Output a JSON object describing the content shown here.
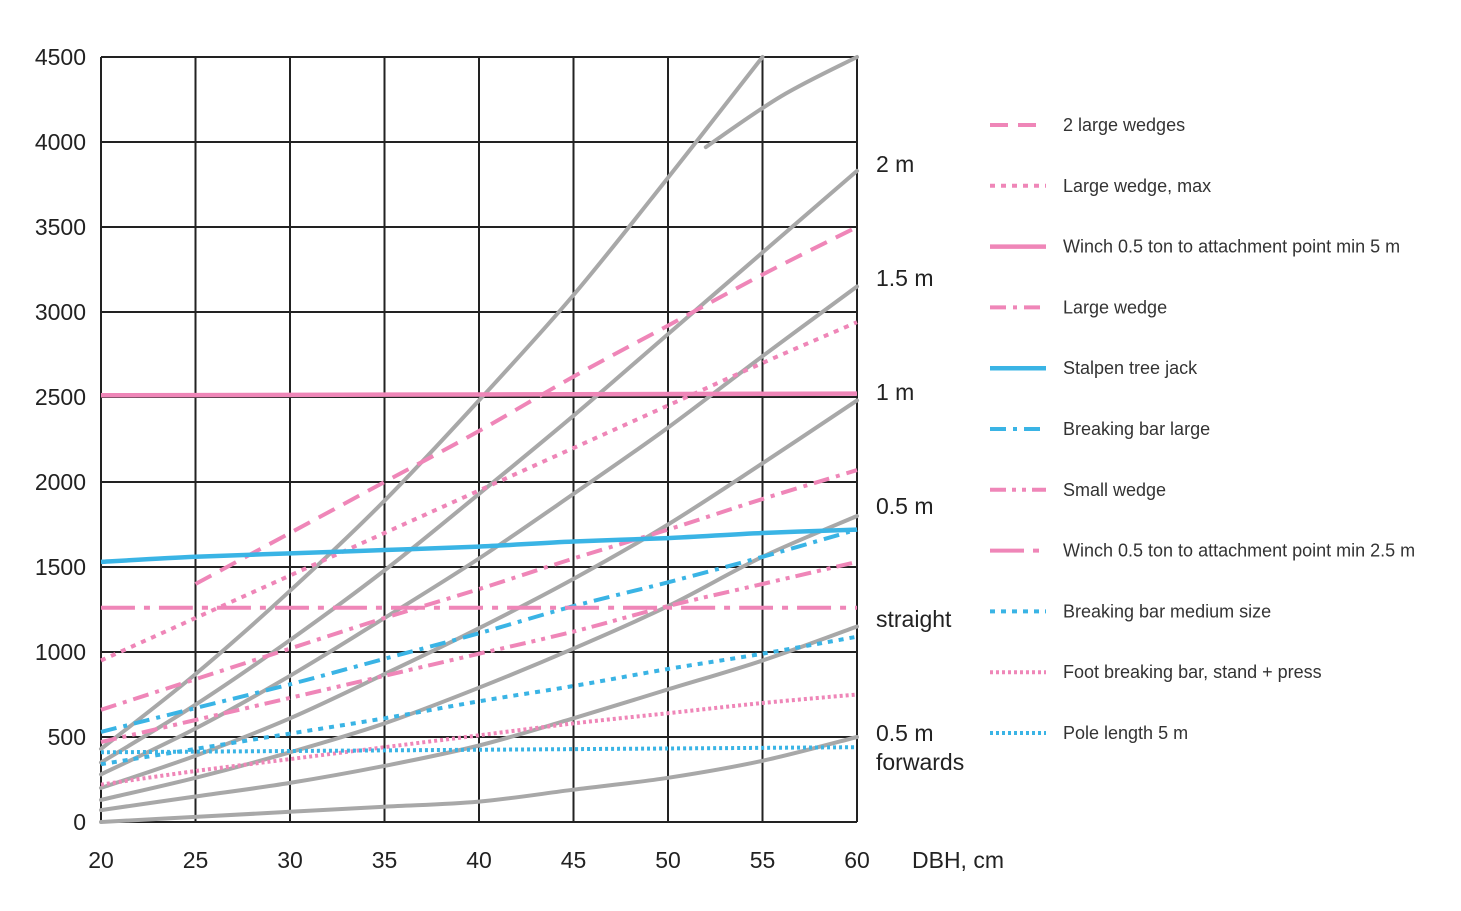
{
  "chart_data": {
    "type": "line",
    "xlabel": "DBH, cm",
    "ylabel": "",
    "xlim": [
      20,
      60
    ],
    "ylim": [
      0,
      4500
    ],
    "x_ticks": [
      20,
      25,
      30,
      35,
      40,
      45,
      50,
      55,
      60
    ],
    "y_ticks": [
      0,
      500,
      1000,
      1500,
      2000,
      2500,
      3000,
      3500,
      4000,
      4500
    ],
    "grid": true,
    "legend_position": "right",
    "colors": {
      "pink": "#ef86b8",
      "blue": "#3ab4e5",
      "gray": "#a8a8a8",
      "grid": "#222222"
    },
    "curve_labels": [
      "2 m",
      "1.5 m",
      "1 m",
      "0.5 m",
      "straight",
      "0.5 m forwards"
    ],
    "reference_curves": [
      {
        "x": [
          20,
          25,
          30,
          35,
          40,
          45,
          50,
          55,
          60
        ],
        "values": [
          0,
          30,
          60,
          90,
          120,
          190,
          260,
          360,
          500
        ]
      },
      {
        "x": [
          20,
          25,
          30,
          35,
          40,
          45,
          50,
          55,
          60
        ],
        "values": [
          70,
          150,
          230,
          330,
          450,
          610,
          780,
          950,
          1150
        ]
      },
      {
        "x": [
          20,
          25,
          30,
          35,
          40,
          45,
          50,
          55,
          60
        ],
        "values": [
          130,
          260,
          410,
          580,
          790,
          1020,
          1270,
          1560,
          1800
        ]
      },
      {
        "x": [
          20,
          25,
          30,
          35,
          40,
          45,
          50,
          55,
          60
        ],
        "values": [
          200,
          390,
          610,
          870,
          1140,
          1430,
          1750,
          2110,
          2480
        ]
      },
      {
        "x": [
          20,
          25,
          30,
          35,
          40,
          45,
          50,
          55,
          60
        ],
        "values": [
          280,
          550,
          860,
          1200,
          1550,
          1930,
          2320,
          2740,
          3150
        ]
      },
      {
        "x": [
          20,
          25,
          30,
          35,
          40,
          45,
          50,
          55,
          60
        ],
        "values": [
          350,
          690,
          1070,
          1480,
          1930,
          2390,
          2870,
          3350,
          3830
        ]
      },
      {
        "x": [
          20,
          25,
          30,
          35,
          40,
          45,
          50,
          55,
          60
        ],
        "values": [
          430,
          870,
          1360,
          1890,
          2480,
          3100,
          3790,
          4500,
          null
        ]
      },
      {
        "x": [
          20,
          25,
          30,
          35,
          40,
          45,
          50,
          55,
          60
        ],
        "values": [
          null,
          null,
          null,
          null,
          null,
          null,
          null,
          null,
          4500
        ],
        "extend_from": [
          [
            52,
            3970
          ],
          [
            56,
            4270
          ],
          [
            60,
            4500
          ]
        ]
      }
    ],
    "series": [
      {
        "name": "2 large wedges",
        "color": "#ef86b8",
        "style": "dashed",
        "x": [
          25,
          30,
          35,
          40,
          45,
          50,
          55,
          60
        ],
        "values": [
          1400,
          1700,
          2000,
          2300,
          2620,
          2920,
          3220,
          3500
        ]
      },
      {
        "name": "Large wedge, max",
        "color": "#ef86b8",
        "style": "dotted",
        "x": [
          20,
          25,
          30,
          35,
          40,
          45,
          50,
          55,
          60
        ],
        "values": [
          950,
          1200,
          1450,
          1700,
          1950,
          2200,
          2450,
          2700,
          2940
        ]
      },
      {
        "name": "Winch 0.5 ton to attachment point min 5 m",
        "color": "#ef86b8",
        "style": "solid",
        "x": [
          20,
          60
        ],
        "values": [
          2510,
          2520
        ]
      },
      {
        "name": "Large wedge",
        "color": "#ef86b8",
        "style": "dashdot",
        "x": [
          20,
          25,
          30,
          35,
          40,
          45,
          50,
          55,
          60
        ],
        "values": [
          660,
          840,
          1020,
          1200,
          1370,
          1550,
          1720,
          1900,
          2070
        ]
      },
      {
        "name": "Stalpen tree jack",
        "color": "#3ab4e5",
        "style": "solid",
        "x": [
          20,
          25,
          30,
          35,
          40,
          45,
          50,
          55,
          60
        ],
        "values": [
          1530,
          1560,
          1580,
          1600,
          1620,
          1650,
          1670,
          1700,
          1720
        ]
      },
      {
        "name": "Breaking bar large",
        "color": "#3ab4e5",
        "style": "dashdot",
        "x": [
          20,
          25,
          30,
          35,
          40,
          45,
          50,
          55,
          60
        ],
        "values": [
          530,
          670,
          810,
          960,
          1110,
          1270,
          1410,
          1560,
          1720
        ]
      },
      {
        "name": "Small wedge",
        "color": "#ef86b8",
        "style": "dashdotdot",
        "x": [
          20,
          25,
          30,
          35,
          40,
          45,
          50,
          55,
          60
        ],
        "values": [
          470,
          600,
          730,
          860,
          990,
          1120,
          1270,
          1400,
          1530
        ]
      },
      {
        "name": "Winch 0.5 ton to attachment point min 2.5 m",
        "color": "#ef86b8",
        "style": "longdash",
        "x": [
          20,
          60
        ],
        "values": [
          1260,
          1260
        ]
      },
      {
        "name": "Breaking bar medium size",
        "color": "#3ab4e5",
        "style": "dotted",
        "x": [
          20,
          25,
          30,
          35,
          40,
          45,
          50,
          55,
          60
        ],
        "values": [
          340,
          430,
          520,
          610,
          710,
          800,
          900,
          990,
          1090
        ]
      },
      {
        "name": "Foot breaking bar, stand + press",
        "color": "#ef86b8",
        "style": "finedotted",
        "x": [
          20,
          25,
          30,
          35,
          40,
          45,
          50,
          55,
          60
        ],
        "values": [
          220,
          300,
          370,
          440,
          510,
          580,
          640,
          700,
          750
        ]
      },
      {
        "name": "Pole length 5 m",
        "color": "#3ab4e5",
        "style": "finedotted",
        "x": [
          20,
          60
        ],
        "values": [
          410,
          440
        ]
      }
    ]
  }
}
